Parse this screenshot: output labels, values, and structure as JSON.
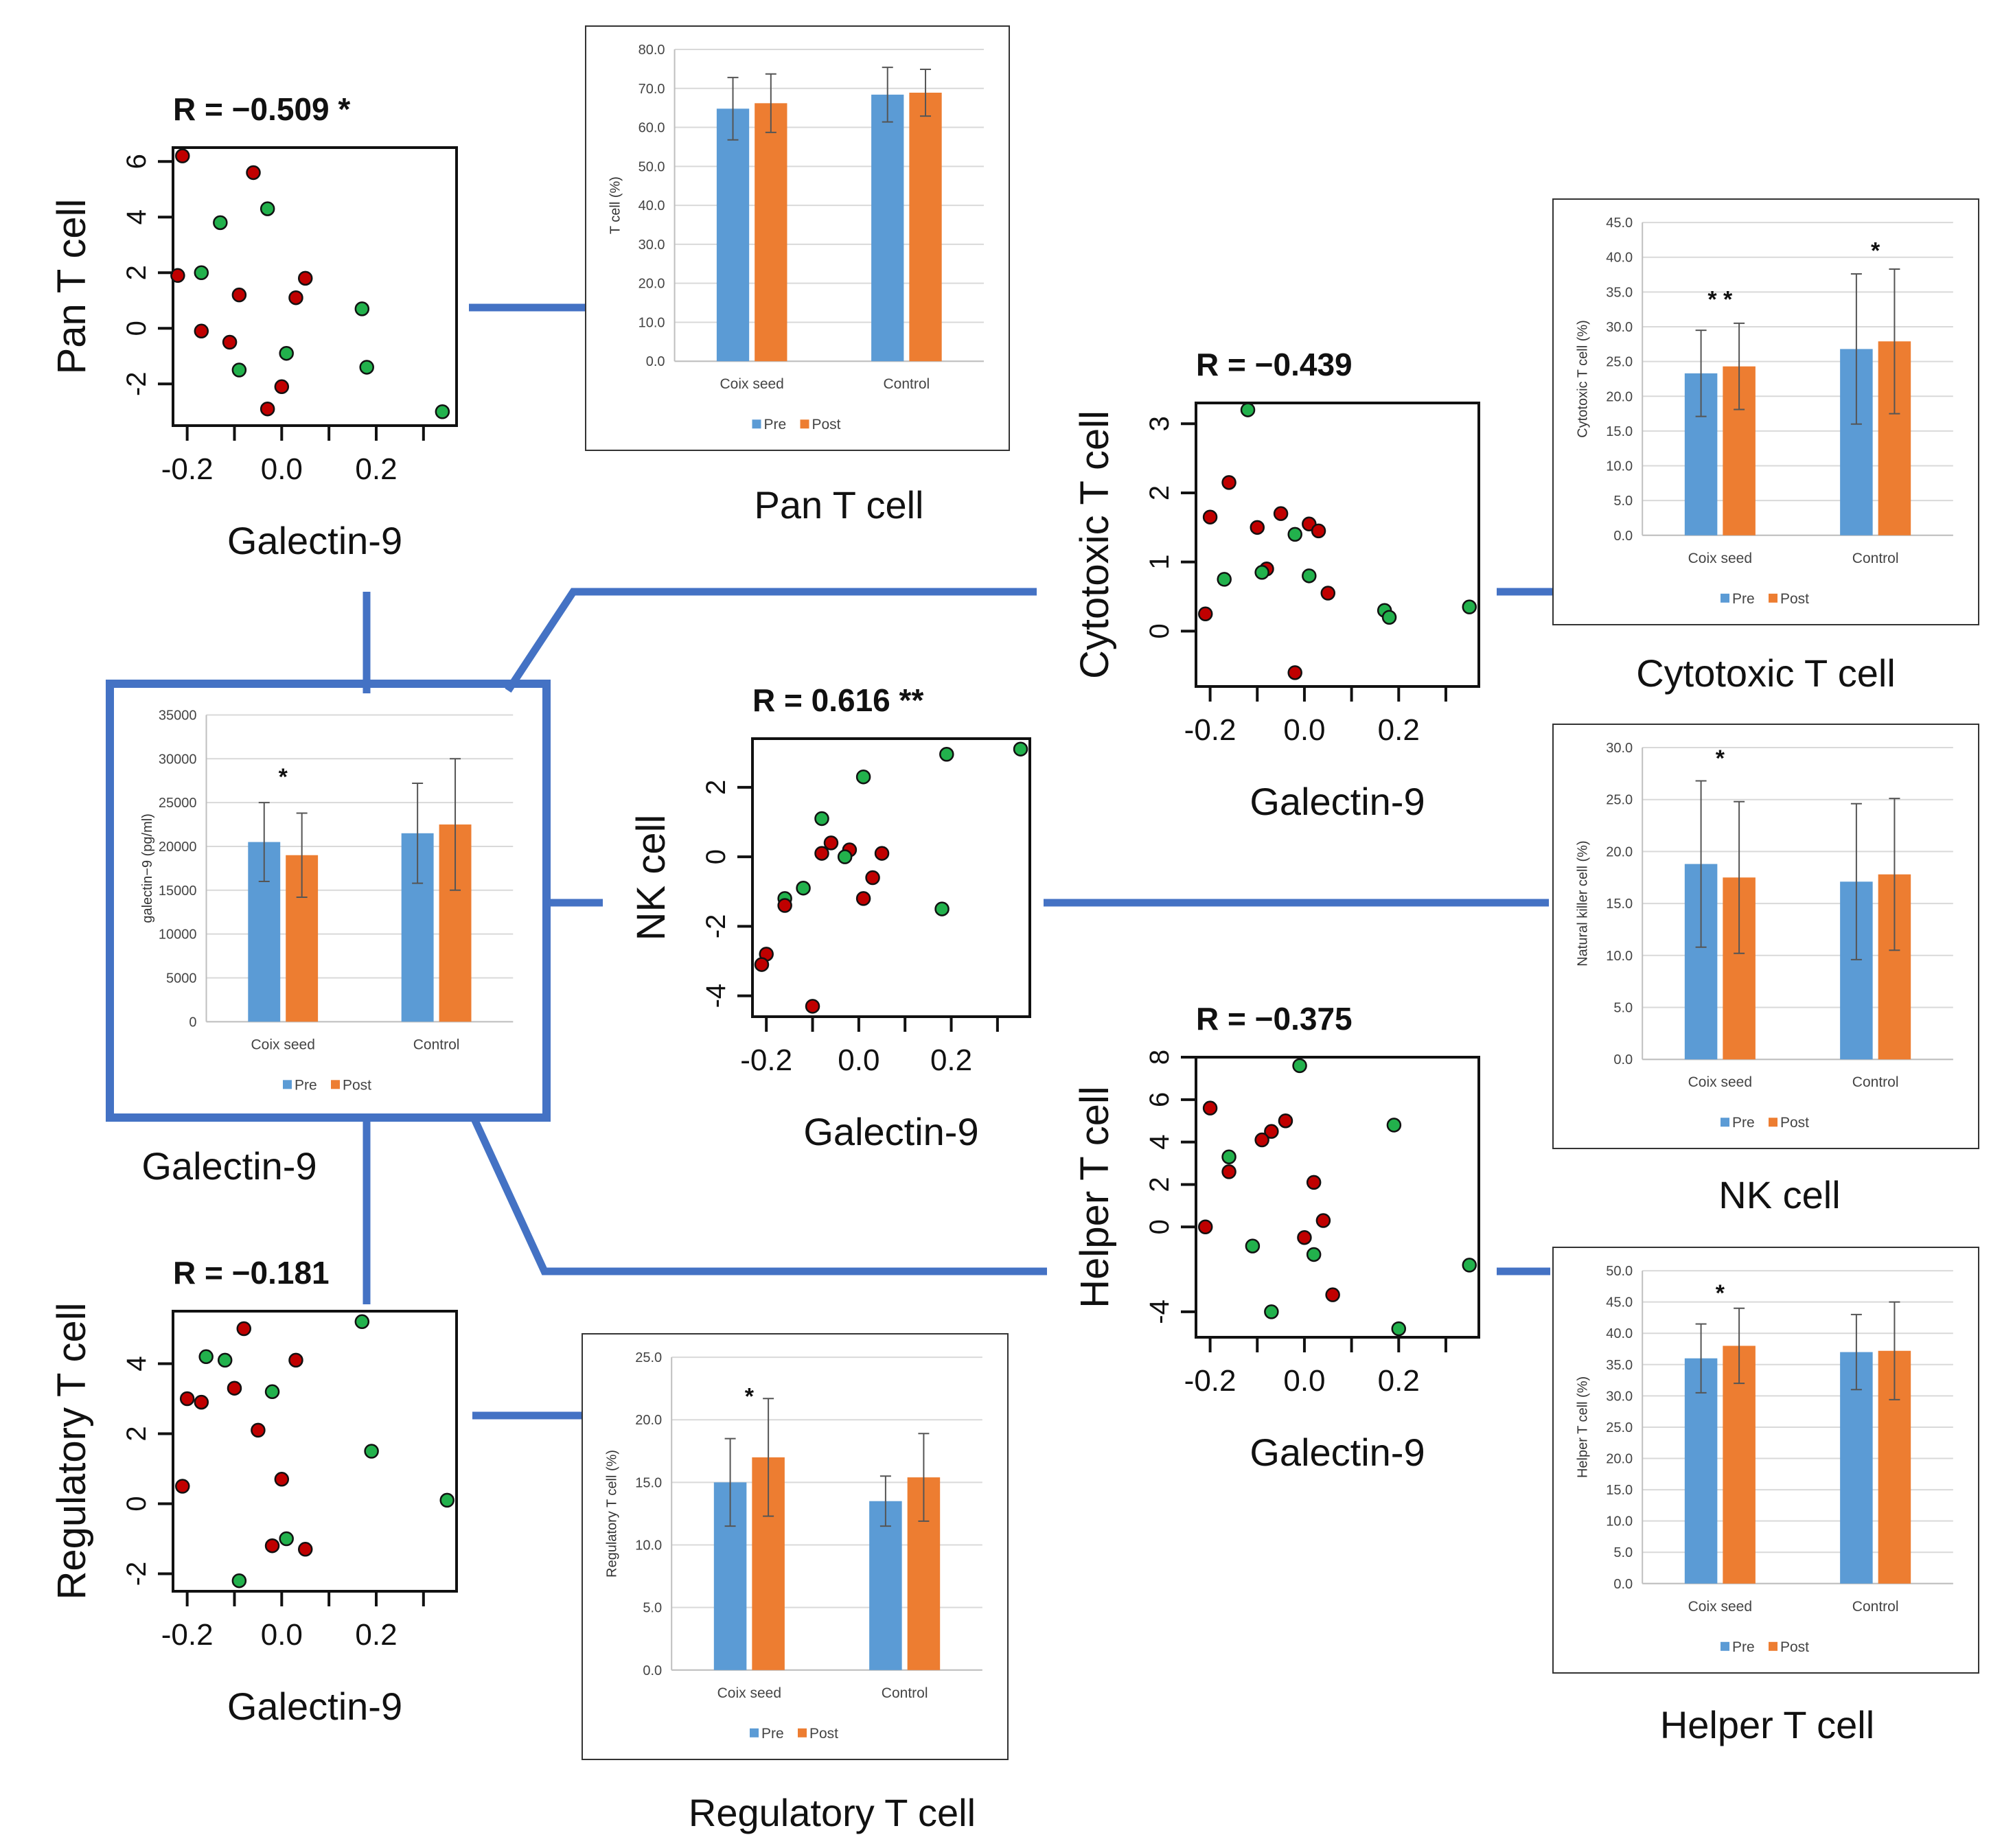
{
  "colors": {
    "pre": "#5b9bd5",
    "post": "#ed7d31",
    "connector": "#4472c4",
    "dot_red": "#c00000",
    "dot_green": "#22b14c",
    "error_bar": "#555555",
    "grid": "#d9d9d9"
  },
  "labels": {
    "galectin9": "Galectin-9"
  },
  "chart_data": [
    {
      "id": "bar-galectin9",
      "type": "bar",
      "title": "Galectin-9",
      "ylabel": "galectin−9 (pg/ml)",
      "categories": [
        "Coix seed",
        "Control"
      ],
      "legend": [
        "Pre",
        "Post"
      ],
      "ylim": [
        0,
        35000
      ],
      "yticks": [
        0,
        5000,
        10000,
        15000,
        20000,
        25000,
        30000,
        35000
      ],
      "tickDecimals": 0,
      "series": [
        {
          "name": "Pre",
          "values": [
            20500,
            21500
          ],
          "errors": [
            4500,
            5700
          ]
        },
        {
          "name": "Post",
          "values": [
            19000,
            22500
          ],
          "errors": [
            4800,
            7500
          ]
        }
      ],
      "annotations": [
        {
          "text": "*",
          "category": 0,
          "value": 28000
        }
      ]
    },
    {
      "id": "bar-pan-t",
      "type": "bar",
      "title": "Pan T cell",
      "ylabel": "T cell (%)",
      "categories": [
        "Coix seed",
        "Control"
      ],
      "legend": [
        "Pre",
        "Post"
      ],
      "ylim": [
        0,
        80
      ],
      "yticks": [
        0,
        10,
        20,
        30,
        40,
        50,
        60,
        70,
        80
      ],
      "tickDecimals": 1,
      "series": [
        {
          "name": "Pre",
          "values": [
            64.8,
            68.4
          ],
          "errors": [
            8.0,
            7.0
          ]
        },
        {
          "name": "Post",
          "values": [
            66.2,
            68.9
          ],
          "errors": [
            7.5,
            6.0
          ]
        }
      ],
      "annotations": []
    },
    {
      "id": "bar-cytotoxic-t",
      "type": "bar",
      "title": "Cytotoxic T cell",
      "ylabel": "Cytotoxic T cell (%)",
      "categories": [
        "Coix seed",
        "Control"
      ],
      "legend": [
        "Pre",
        "Post"
      ],
      "ylim": [
        0,
        45
      ],
      "yticks": [
        0,
        5,
        10,
        15,
        20,
        25,
        30,
        35,
        40,
        45
      ],
      "tickDecimals": 1,
      "series": [
        {
          "name": "Pre",
          "values": [
            23.3,
            26.8
          ],
          "errors": [
            6.2,
            10.8
          ]
        },
        {
          "name": "Post",
          "values": [
            24.3,
            27.9
          ],
          "errors": [
            6.2,
            10.4
          ]
        }
      ],
      "annotations": [
        {
          "text": "* *",
          "category": 0,
          "value": 34
        },
        {
          "text": "*",
          "category": 1,
          "value": 41
        }
      ]
    },
    {
      "id": "bar-nk",
      "type": "bar",
      "title": "NK cell",
      "ylabel": "Natural killer cell (%)",
      "categories": [
        "Coix seed",
        "Control"
      ],
      "legend": [
        "Pre",
        "Post"
      ],
      "ylim": [
        0,
        30
      ],
      "yticks": [
        0,
        5,
        10,
        15,
        20,
        25,
        30
      ],
      "tickDecimals": 1,
      "series": [
        {
          "name": "Pre",
          "values": [
            18.8,
            17.1
          ],
          "errors": [
            8.0,
            7.5
          ]
        },
        {
          "name": "Post",
          "values": [
            17.5,
            17.8
          ],
          "errors": [
            7.3,
            7.3
          ]
        }
      ],
      "annotations": [
        {
          "text": "*",
          "category": 0,
          "value": 29.0
        }
      ]
    },
    {
      "id": "bar-helper-t",
      "type": "bar",
      "title": "Helper T cell",
      "ylabel": "Helper T cell (%)",
      "categories": [
        "Coix seed",
        "Control"
      ],
      "legend": [
        "Pre",
        "Post"
      ],
      "ylim": [
        0,
        50
      ],
      "yticks": [
        0,
        5,
        10,
        15,
        20,
        25,
        30,
        35,
        40,
        45,
        50
      ],
      "tickDecimals": 1,
      "series": [
        {
          "name": "Pre",
          "values": [
            36.0,
            37.0
          ],
          "errors": [
            5.5,
            6.0
          ]
        },
        {
          "name": "Post",
          "values": [
            38.0,
            37.2
          ],
          "errors": [
            6.0,
            7.8
          ]
        }
      ],
      "annotations": [
        {
          "text": "*",
          "category": 0,
          "value": 46.5
        }
      ]
    },
    {
      "id": "bar-regulatory-t",
      "type": "bar",
      "title": "Regulatory T cell",
      "ylabel": "Regulatory T cell (%)",
      "categories": [
        "Coix seed",
        "Control"
      ],
      "legend": [
        "Pre",
        "Post"
      ],
      "ylim": [
        0,
        25
      ],
      "yticks": [
        0,
        5,
        10,
        15,
        20,
        25
      ],
      "tickDecimals": 1,
      "series": [
        {
          "name": "Pre",
          "values": [
            15.0,
            13.5
          ],
          "errors": [
            3.5,
            2.0
          ]
        },
        {
          "name": "Post",
          "values": [
            17.0,
            15.4
          ],
          "errors": [
            4.7,
            3.5
          ]
        }
      ],
      "annotations": [
        {
          "text": "*",
          "category": 0,
          "value": 21.9
        }
      ]
    },
    {
      "id": "sc-pan-t",
      "type": "scatter",
      "corr": "R = −0.509 *",
      "xlabel": "Galectin-9",
      "ylabel": "Pan T cell",
      "xlim": [
        -0.23,
        0.37
      ],
      "ylim": [
        -3.5,
        6.5
      ],
      "xticks": [
        -0.2,
        -0.1,
        0.0,
        0.1,
        0.2,
        0.3
      ],
      "xtickLabels": [
        "-0.2",
        "",
        "0.0",
        "",
        "0.2",
        ""
      ],
      "yticks": [
        -2,
        0,
        2,
        4,
        6
      ],
      "ytickLabels": [
        "-2",
        "0",
        "2",
        "4",
        "6"
      ],
      "points": [
        {
          "x": -0.21,
          "y": 6.2,
          "g": "red"
        },
        {
          "x": -0.06,
          "y": 5.6,
          "g": "red"
        },
        {
          "x": -0.03,
          "y": 4.3,
          "g": "green"
        },
        {
          "x": -0.13,
          "y": 3.8,
          "g": "green"
        },
        {
          "x": -0.22,
          "y": 1.9,
          "g": "red"
        },
        {
          "x": -0.17,
          "y": 2.0,
          "g": "green"
        },
        {
          "x": 0.05,
          "y": 1.8,
          "g": "red"
        },
        {
          "x": -0.09,
          "y": 1.2,
          "g": "red"
        },
        {
          "x": 0.03,
          "y": 1.1,
          "g": "red"
        },
        {
          "x": 0.17,
          "y": 0.7,
          "g": "green"
        },
        {
          "x": -0.17,
          "y": -0.1,
          "g": "red"
        },
        {
          "x": -0.11,
          "y": -0.5,
          "g": "red"
        },
        {
          "x": 0.01,
          "y": -0.9,
          "g": "green"
        },
        {
          "x": -0.09,
          "y": -1.5,
          "g": "green"
        },
        {
          "x": 0.18,
          "y": -1.4,
          "g": "green"
        },
        {
          "x": 0.0,
          "y": -2.1,
          "g": "red"
        },
        {
          "x": -0.03,
          "y": -2.9,
          "g": "red"
        },
        {
          "x": 0.34,
          "y": -3.0,
          "g": "green"
        }
      ]
    },
    {
      "id": "sc-cytotoxic-t",
      "type": "scatter",
      "corr": "R = −0.439",
      "xlabel": "Galectin-9",
      "ylabel": "Cytotoxic T cell",
      "xlim": [
        -0.23,
        0.37
      ],
      "ylim": [
        -0.8,
        3.3
      ],
      "xticks": [
        -0.2,
        -0.1,
        0.0,
        0.1,
        0.2,
        0.3
      ],
      "xtickLabels": [
        "-0.2",
        "",
        "0.0",
        "",
        "0.2",
        ""
      ],
      "yticks": [
        0,
        1,
        2,
        3
      ],
      "ytickLabels": [
        "0",
        "1",
        "2",
        "3"
      ],
      "points": [
        {
          "x": -0.12,
          "y": 3.2,
          "g": "green"
        },
        {
          "x": -0.16,
          "y": 2.15,
          "g": "red"
        },
        {
          "x": -0.2,
          "y": 1.65,
          "g": "red"
        },
        {
          "x": -0.05,
          "y": 1.7,
          "g": "red"
        },
        {
          "x": 0.01,
          "y": 1.55,
          "g": "red"
        },
        {
          "x": -0.1,
          "y": 1.5,
          "g": "red"
        },
        {
          "x": 0.03,
          "y": 1.45,
          "g": "red"
        },
        {
          "x": -0.02,
          "y": 1.4,
          "g": "green"
        },
        {
          "x": -0.08,
          "y": 0.9,
          "g": "red"
        },
        {
          "x": -0.09,
          "y": 0.85,
          "g": "green"
        },
        {
          "x": 0.01,
          "y": 0.8,
          "g": "green"
        },
        {
          "x": -0.17,
          "y": 0.75,
          "g": "green"
        },
        {
          "x": 0.05,
          "y": 0.55,
          "g": "red"
        },
        {
          "x": 0.35,
          "y": 0.35,
          "g": "green"
        },
        {
          "x": 0.17,
          "y": 0.3,
          "g": "green"
        },
        {
          "x": 0.18,
          "y": 0.2,
          "g": "green"
        },
        {
          "x": -0.21,
          "y": 0.25,
          "g": "red"
        },
        {
          "x": -0.02,
          "y": -0.6,
          "g": "red"
        }
      ]
    },
    {
      "id": "sc-nk",
      "type": "scatter",
      "corr": "R = 0.616 **",
      "xlabel": "Galectin-9",
      "ylabel": "NK cell",
      "xlim": [
        -0.23,
        0.37
      ],
      "ylim": [
        -4.6,
        3.4
      ],
      "xticks": [
        -0.2,
        -0.1,
        0.0,
        0.1,
        0.2,
        0.3
      ],
      "xtickLabels": [
        "-0.2",
        "",
        "0.0",
        "",
        "0.2",
        ""
      ],
      "yticks": [
        -4,
        -2,
        0,
        2
      ],
      "ytickLabels": [
        "-4",
        "-2",
        "0",
        "2"
      ],
      "points": [
        {
          "x": 0.35,
          "y": 3.1,
          "g": "green"
        },
        {
          "x": 0.19,
          "y": 2.95,
          "g": "green"
        },
        {
          "x": 0.01,
          "y": 2.3,
          "g": "green"
        },
        {
          "x": -0.08,
          "y": 1.1,
          "g": "green"
        },
        {
          "x": -0.06,
          "y": 0.4,
          "g": "red"
        },
        {
          "x": -0.08,
          "y": 0.1,
          "g": "red"
        },
        {
          "x": -0.02,
          "y": 0.2,
          "g": "red"
        },
        {
          "x": -0.03,
          "y": 0.0,
          "g": "green"
        },
        {
          "x": 0.05,
          "y": 0.1,
          "g": "red"
        },
        {
          "x": 0.03,
          "y": -0.6,
          "g": "red"
        },
        {
          "x": -0.12,
          "y": -0.9,
          "g": "green"
        },
        {
          "x": 0.01,
          "y": -1.2,
          "g": "red"
        },
        {
          "x": -0.16,
          "y": -1.2,
          "g": "green"
        },
        {
          "x": -0.16,
          "y": -1.4,
          "g": "red"
        },
        {
          "x": 0.18,
          "y": -1.5,
          "g": "green"
        },
        {
          "x": -0.2,
          "y": -2.8,
          "g": "red"
        },
        {
          "x": -0.21,
          "y": -3.1,
          "g": "red"
        },
        {
          "x": -0.1,
          "y": -4.3,
          "g": "red"
        }
      ]
    },
    {
      "id": "sc-helper-t",
      "type": "scatter",
      "corr": "R = −0.375",
      "xlabel": "Galectin-9",
      "ylabel": "Helper T cell",
      "xlim": [
        -0.23,
        0.37
      ],
      "ylim": [
        -5.2,
        8.0
      ],
      "xticks": [
        -0.2,
        -0.1,
        0.0,
        0.1,
        0.2,
        0.3
      ],
      "xtickLabels": [
        "-0.2",
        "",
        "0.0",
        "",
        "0.2",
        ""
      ],
      "yticks": [
        -4,
        0,
        2,
        4,
        6,
        8
      ],
      "ytickLabels": [
        "-4",
        "0",
        "2",
        "4",
        "6",
        "8"
      ],
      "points": [
        {
          "x": -0.01,
          "y": 7.6,
          "g": "green"
        },
        {
          "x": -0.2,
          "y": 5.6,
          "g": "red"
        },
        {
          "x": 0.19,
          "y": 4.8,
          "g": "green"
        },
        {
          "x": -0.04,
          "y": 5.0,
          "g": "red"
        },
        {
          "x": -0.07,
          "y": 4.5,
          "g": "red"
        },
        {
          "x": -0.09,
          "y": 4.1,
          "g": "red"
        },
        {
          "x": -0.16,
          "y": 3.3,
          "g": "green"
        },
        {
          "x": -0.16,
          "y": 2.6,
          "g": "red"
        },
        {
          "x": 0.02,
          "y": 2.1,
          "g": "red"
        },
        {
          "x": 0.04,
          "y": 0.3,
          "g": "red"
        },
        {
          "x": -0.21,
          "y": 0.0,
          "g": "red"
        },
        {
          "x": 0.0,
          "y": -0.5,
          "g": "red"
        },
        {
          "x": -0.11,
          "y": -0.9,
          "g": "green"
        },
        {
          "x": 0.02,
          "y": -1.3,
          "g": "green"
        },
        {
          "x": 0.35,
          "y": -1.8,
          "g": "green"
        },
        {
          "x": 0.06,
          "y": -3.2,
          "g": "red"
        },
        {
          "x": -0.07,
          "y": -4.0,
          "g": "green"
        },
        {
          "x": 0.2,
          "y": -4.8,
          "g": "green"
        }
      ]
    },
    {
      "id": "sc-regulatory-t",
      "type": "scatter",
      "corr": "R = −0.181",
      "xlabel": "Galectin-9",
      "ylabel": "Regulatory T cell",
      "xlim": [
        -0.23,
        0.37
      ],
      "ylim": [
        -2.5,
        5.5
      ],
      "xticks": [
        -0.2,
        -0.1,
        0.0,
        0.1,
        0.2,
        0.3
      ],
      "xtickLabels": [
        "-0.2",
        "",
        "0.0",
        "",
        "0.2",
        ""
      ],
      "yticks": [
        -2,
        0,
        2,
        4
      ],
      "ytickLabels": [
        "-2",
        "0",
        "2",
        "4"
      ],
      "points": [
        {
          "x": 0.17,
          "y": 5.2,
          "g": "green"
        },
        {
          "x": -0.08,
          "y": 5.0,
          "g": "red"
        },
        {
          "x": -0.16,
          "y": 4.2,
          "g": "green"
        },
        {
          "x": -0.12,
          "y": 4.1,
          "g": "green"
        },
        {
          "x": 0.03,
          "y": 4.1,
          "g": "red"
        },
        {
          "x": -0.1,
          "y": 3.3,
          "g": "red"
        },
        {
          "x": -0.02,
          "y": 3.2,
          "g": "green"
        },
        {
          "x": -0.2,
          "y": 3.0,
          "g": "red"
        },
        {
          "x": -0.17,
          "y": 2.9,
          "g": "red"
        },
        {
          "x": -0.05,
          "y": 2.1,
          "g": "red"
        },
        {
          "x": 0.19,
          "y": 1.5,
          "g": "green"
        },
        {
          "x": 0.0,
          "y": 0.7,
          "g": "red"
        },
        {
          "x": -0.21,
          "y": 0.5,
          "g": "red"
        },
        {
          "x": 0.35,
          "y": 0.1,
          "g": "green"
        },
        {
          "x": 0.01,
          "y": -1.0,
          "g": "green"
        },
        {
          "x": -0.02,
          "y": -1.2,
          "g": "red"
        },
        {
          "x": 0.05,
          "y": -1.3,
          "g": "red"
        },
        {
          "x": -0.09,
          "y": -2.2,
          "g": "green"
        }
      ]
    }
  ]
}
